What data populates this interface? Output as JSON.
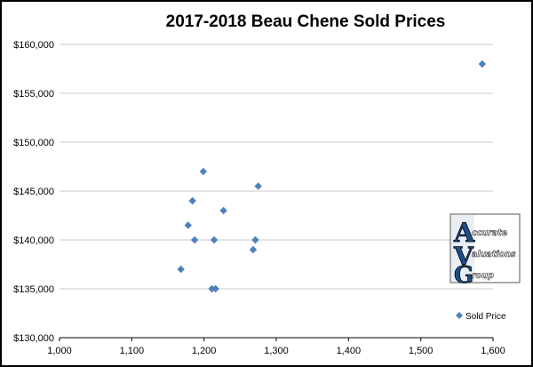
{
  "chart_data": {
    "type": "scatter",
    "title": "2017-2018 Beau Chene Sold Prices",
    "xlabel": "",
    "ylabel": "",
    "xlim": [
      1000,
      1600
    ],
    "ylim": [
      130000,
      160000
    ],
    "x_ticks": [
      1000,
      1100,
      1200,
      1300,
      1400,
      1500,
      1600
    ],
    "x_tick_labels": [
      "1,000",
      "1,100",
      "1,200",
      "1,300",
      "1,400",
      "1,500",
      "1,600"
    ],
    "y_ticks": [
      130000,
      135000,
      140000,
      145000,
      150000,
      155000,
      160000
    ],
    "y_tick_labels": [
      "$130,000",
      "$135,000",
      "$140,000",
      "$145,000",
      "$150,000",
      "$155,000",
      "$160,000"
    ],
    "grid": "horizontal",
    "legend_position": "bottom-right",
    "series": [
      {
        "name": "Sold Price",
        "color": "#4f81bd",
        "marker": "diamond",
        "points": [
          {
            "x": 1168,
            "y": 137000
          },
          {
            "x": 1178,
            "y": 141500
          },
          {
            "x": 1184,
            "y": 144000
          },
          {
            "x": 1187,
            "y": 140000
          },
          {
            "x": 1199,
            "y": 147000
          },
          {
            "x": 1211,
            "y": 135000
          },
          {
            "x": 1214,
            "y": 140000
          },
          {
            "x": 1216,
            "y": 135000
          },
          {
            "x": 1227,
            "y": 143000
          },
          {
            "x": 1268,
            "y": 139000
          },
          {
            "x": 1271,
            "y": 140000
          },
          {
            "x": 1275,
            "y": 145500
          },
          {
            "x": 1585,
            "y": 158000
          }
        ]
      }
    ]
  },
  "logo": {
    "letters": [
      "A",
      "V",
      "G"
    ],
    "words": [
      "ccurate",
      "aluations",
      "roup"
    ]
  }
}
